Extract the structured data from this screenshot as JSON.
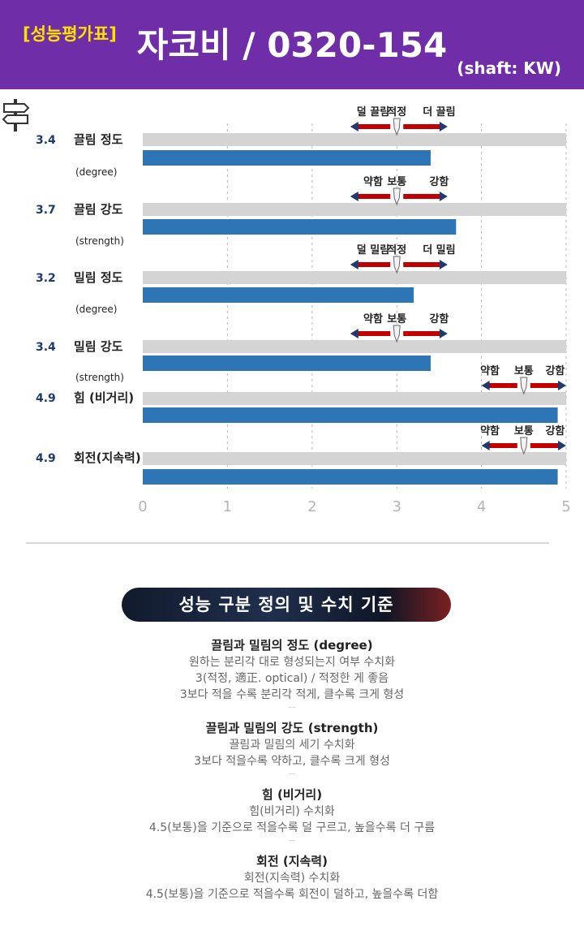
{
  "header": {
    "tag": "[성능평가표]",
    "title": "자코비 / 0320-154",
    "shaft": "(shaft: KW)"
  },
  "colors": {
    "header_bg": "#6f2da8",
    "tag": "#ffe100",
    "bar": "#2e75b6",
    "track": "#d4d4d4",
    "score": "#1f3a6e",
    "arrow": "#c00000"
  },
  "chart_data": {
    "type": "bar",
    "orientation": "horizontal",
    "xlim": [
      0,
      5
    ],
    "xticks": [
      "0",
      "1",
      "2",
      "3",
      "4",
      "5"
    ],
    "grid": "vertical dashed",
    "categories": [
      {
        "label": "끌림 정도",
        "sub": "(degree)",
        "score": "3.4",
        "value": 3.4,
        "scale": [
          "덜 끌림",
          "적정",
          "더 끌림"
        ],
        "scale_center": 3
      },
      {
        "label": "끌림 강도",
        "sub": "(strength)",
        "score": "3.7",
        "value": 3.7,
        "scale": [
          "약함",
          "보통",
          "강함"
        ],
        "scale_center": 3
      },
      {
        "label": "밀림 정도",
        "sub": "(degree)",
        "score": "3.2",
        "value": 3.2,
        "scale": [
          "덜 밀림",
          "적정",
          "더 밀림"
        ],
        "scale_center": 3
      },
      {
        "label": "밀림 강도",
        "sub": "(strength)",
        "score": "3.4",
        "value": 3.4,
        "scale": [
          "약함",
          "보통",
          "강함"
        ],
        "scale_center": 3
      },
      {
        "label": "힘 (비거리)",
        "sub": "",
        "score": "4.9",
        "value": 4.9,
        "scale": [
          "약함",
          "보통",
          "강함"
        ],
        "scale_center": 4.5
      },
      {
        "label": "회전(지속력)",
        "sub": "",
        "score": "4.9",
        "value": 4.9,
        "scale": [
          "약함",
          "보통",
          "강함"
        ],
        "scale_center": 4.5
      }
    ]
  },
  "section": {
    "banner": "성능 구분 정의 및 수치 기준",
    "definitions": [
      {
        "title": "끌림과 밀림의 정도 (degree)",
        "lines": [
          "원하는 분리각 대로 형성되는지 여부 수치화",
          "3(적정, 適正. optical) / 적정한 게 좋음",
          "3보다 적을 수록 분리각 적게, 클수록 크게 형성"
        ]
      },
      {
        "title": "끌림과 밀림의 강도 (strength)",
        "lines": [
          "끌림과 밀림의 세기 수치화",
          "3보다 적을수록 약하고, 클수록 크게 형성"
        ]
      },
      {
        "title": "힘 (비거리)",
        "lines": [
          "힘(비거리) 수치화",
          "4.5(보통)을 기준으로 적을수록 덜 구르고, 높을수록 더 구름"
        ]
      },
      {
        "title": "회전 (지속력)",
        "lines": [
          "회전(지속력) 수치화",
          "4.5(보통)을 기준으로 적을수록 회전이 덜하고, 높을수록 더함"
        ]
      }
    ]
  }
}
